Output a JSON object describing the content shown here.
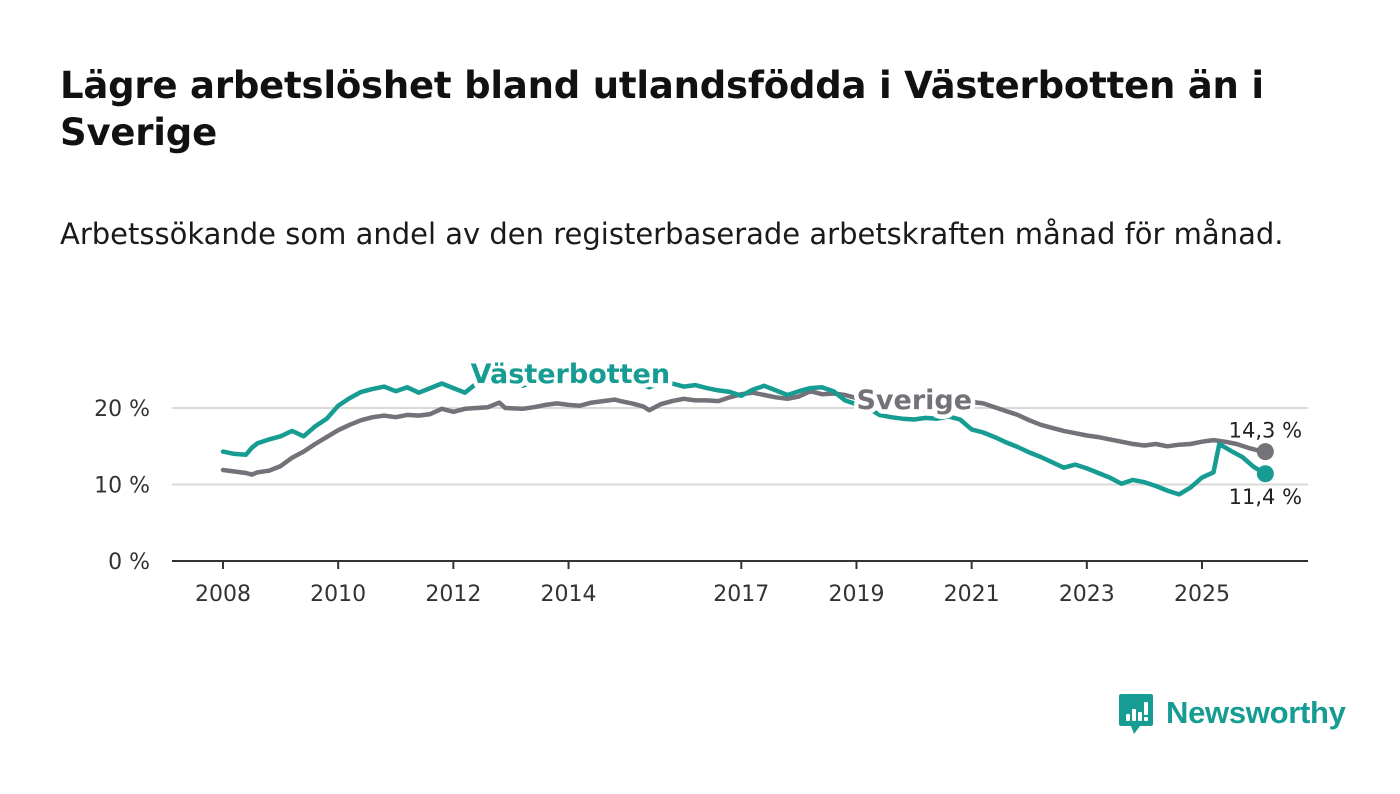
{
  "title": "Lägre arbetslöshet bland utlandsfödda i Västerbotten än i Sverige",
  "subtitle": "Arbetssökande som andel av den registerbaserade arbetskraften månad för månad.",
  "brand": {
    "name": "Newsworthy",
    "color": "#169c92"
  },
  "chart_data": {
    "type": "line",
    "x_unit": "year",
    "xlim": [
      2007.4,
      2026.9
    ],
    "ylim": [
      0,
      25
    ],
    "y_ticks": [
      {
        "value": 0,
        "label": "0 %"
      },
      {
        "value": 10,
        "label": "10 %"
      },
      {
        "value": 20,
        "label": "20 %"
      }
    ],
    "x_ticks": [
      {
        "value": 2008,
        "label": "2008"
      },
      {
        "value": 2010,
        "label": "2010"
      },
      {
        "value": 2012,
        "label": "2012"
      },
      {
        "value": 2014,
        "label": "2014"
      },
      {
        "value": 2017,
        "label": "2017"
      },
      {
        "value": 2019,
        "label": "2019"
      },
      {
        "value": 2021,
        "label": "2021"
      },
      {
        "value": 2023,
        "label": "2023"
      },
      {
        "value": 2025,
        "label": "2025"
      }
    ],
    "series": [
      {
        "name": "Sverige",
        "color": "#757178",
        "end_label": "14,3 %",
        "points": [
          [
            2008.0,
            11.9
          ],
          [
            2008.2,
            11.7
          ],
          [
            2008.4,
            11.5
          ],
          [
            2008.5,
            11.3
          ],
          [
            2008.6,
            11.6
          ],
          [
            2008.8,
            11.8
          ],
          [
            2009.0,
            12.4
          ],
          [
            2009.2,
            13.5
          ],
          [
            2009.4,
            14.3
          ],
          [
            2009.6,
            15.3
          ],
          [
            2009.8,
            16.2
          ],
          [
            2010.0,
            17.1
          ],
          [
            2010.2,
            17.8
          ],
          [
            2010.4,
            18.4
          ],
          [
            2010.6,
            18.8
          ],
          [
            2010.8,
            19.0
          ],
          [
            2011.0,
            18.8
          ],
          [
            2011.2,
            19.1
          ],
          [
            2011.4,
            19.0
          ],
          [
            2011.6,
            19.2
          ],
          [
            2011.8,
            19.9
          ],
          [
            2012.0,
            19.5
          ],
          [
            2012.2,
            19.9
          ],
          [
            2012.4,
            20.0
          ],
          [
            2012.6,
            20.1
          ],
          [
            2012.8,
            20.7
          ],
          [
            2012.9,
            20.0
          ],
          [
            2013.2,
            19.9
          ],
          [
            2013.4,
            20.1
          ],
          [
            2013.6,
            20.4
          ],
          [
            2013.8,
            20.6
          ],
          [
            2014.0,
            20.4
          ],
          [
            2014.2,
            20.3
          ],
          [
            2014.4,
            20.7
          ],
          [
            2014.6,
            20.9
          ],
          [
            2014.8,
            21.1
          ],
          [
            2014.9,
            20.9
          ],
          [
            2015.1,
            20.6
          ],
          [
            2015.3,
            20.2
          ],
          [
            2015.4,
            19.7
          ],
          [
            2015.6,
            20.5
          ],
          [
            2015.8,
            20.9
          ],
          [
            2016.0,
            21.2
          ],
          [
            2016.2,
            21.0
          ],
          [
            2016.4,
            21.0
          ],
          [
            2016.6,
            20.9
          ],
          [
            2016.8,
            21.4
          ],
          [
            2017.0,
            21.8
          ],
          [
            2017.2,
            22.0
          ],
          [
            2017.4,
            21.7
          ],
          [
            2017.6,
            21.4
          ],
          [
            2017.8,
            21.2
          ],
          [
            2018.0,
            21.5
          ],
          [
            2018.2,
            22.2
          ],
          [
            2018.4,
            21.8
          ],
          [
            2018.6,
            21.9
          ],
          [
            2018.8,
            21.7
          ],
          [
            2019.0,
            21.3
          ],
          [
            2019.2,
            21.0
          ],
          [
            2019.4,
            20.8
          ],
          [
            2019.6,
            20.6
          ],
          [
            2019.8,
            20.1
          ],
          [
            2020.0,
            20.0
          ],
          [
            2020.2,
            19.8
          ],
          [
            2020.4,
            19.8
          ],
          [
            2020.6,
            19.9
          ],
          [
            2020.8,
            20.4
          ],
          [
            2021.0,
            20.8
          ],
          [
            2021.2,
            20.6
          ],
          [
            2021.4,
            20.1
          ],
          [
            2021.6,
            19.6
          ],
          [
            2021.8,
            19.1
          ],
          [
            2022.0,
            18.4
          ],
          [
            2022.2,
            17.8
          ],
          [
            2022.4,
            17.4
          ],
          [
            2022.6,
            17.0
          ],
          [
            2022.8,
            16.7
          ],
          [
            2023.0,
            16.4
          ],
          [
            2023.2,
            16.2
          ],
          [
            2023.4,
            15.9
          ],
          [
            2023.6,
            15.6
          ],
          [
            2023.8,
            15.3
          ],
          [
            2024.0,
            15.1
          ],
          [
            2024.2,
            15.3
          ],
          [
            2024.4,
            15.0
          ],
          [
            2024.6,
            15.2
          ],
          [
            2024.8,
            15.3
          ],
          [
            2025.0,
            15.6
          ],
          [
            2025.2,
            15.8
          ],
          [
            2025.4,
            15.6
          ],
          [
            2025.6,
            15.3
          ],
          [
            2025.8,
            14.8
          ],
          [
            2026.0,
            14.4
          ],
          [
            2026.1,
            14.3
          ]
        ]
      },
      {
        "name": "Västerbotten",
        "color": "#169c92",
        "end_label": "11,4 %",
        "points": [
          [
            2008.0,
            14.3
          ],
          [
            2008.2,
            14.0
          ],
          [
            2008.4,
            13.9
          ],
          [
            2008.5,
            14.8
          ],
          [
            2008.6,
            15.4
          ],
          [
            2008.8,
            15.9
          ],
          [
            2009.0,
            16.3
          ],
          [
            2009.2,
            17.0
          ],
          [
            2009.4,
            16.3
          ],
          [
            2009.6,
            17.6
          ],
          [
            2009.8,
            18.6
          ],
          [
            2010.0,
            20.3
          ],
          [
            2010.2,
            21.3
          ],
          [
            2010.4,
            22.1
          ],
          [
            2010.6,
            22.5
          ],
          [
            2010.8,
            22.8
          ],
          [
            2011.0,
            22.2
          ],
          [
            2011.2,
            22.7
          ],
          [
            2011.4,
            22.0
          ],
          [
            2011.6,
            22.6
          ],
          [
            2011.8,
            23.2
          ],
          [
            2012.0,
            22.6
          ],
          [
            2012.2,
            22.0
          ],
          [
            2012.4,
            23.2
          ],
          [
            2012.6,
            23.6
          ],
          [
            2012.8,
            24.3
          ],
          [
            2012.9,
            23.7
          ],
          [
            2013.2,
            22.9
          ],
          [
            2013.4,
            23.4
          ],
          [
            2013.6,
            23.7
          ],
          [
            2013.8,
            23.9
          ],
          [
            2014.0,
            23.8
          ],
          [
            2014.2,
            23.5
          ],
          [
            2014.4,
            23.9
          ],
          [
            2014.6,
            23.6
          ],
          [
            2014.8,
            23.8
          ],
          [
            2014.9,
            23.5
          ],
          [
            2015.1,
            23.3
          ],
          [
            2015.3,
            23.0
          ],
          [
            2015.4,
            22.7
          ],
          [
            2015.6,
            23.2
          ],
          [
            2015.8,
            23.2
          ],
          [
            2016.0,
            22.8
          ],
          [
            2016.2,
            23.0
          ],
          [
            2016.4,
            22.6
          ],
          [
            2016.6,
            22.3
          ],
          [
            2016.8,
            22.1
          ],
          [
            2017.0,
            21.6
          ],
          [
            2017.2,
            22.4
          ],
          [
            2017.4,
            22.9
          ],
          [
            2017.6,
            22.3
          ],
          [
            2017.8,
            21.7
          ],
          [
            2018.0,
            22.2
          ],
          [
            2018.2,
            22.6
          ],
          [
            2018.4,
            22.7
          ],
          [
            2018.6,
            22.2
          ],
          [
            2018.8,
            21.0
          ],
          [
            2019.0,
            20.5
          ],
          [
            2019.2,
            20.0
          ],
          [
            2019.4,
            19.1
          ],
          [
            2019.6,
            18.8
          ],
          [
            2019.8,
            18.6
          ],
          [
            2020.0,
            18.5
          ],
          [
            2020.2,
            18.7
          ],
          [
            2020.4,
            18.6
          ],
          [
            2020.6,
            18.9
          ],
          [
            2020.8,
            18.5
          ],
          [
            2021.0,
            17.2
          ],
          [
            2021.2,
            16.8
          ],
          [
            2021.4,
            16.2
          ],
          [
            2021.6,
            15.5
          ],
          [
            2021.8,
            14.9
          ],
          [
            2022.0,
            14.2
          ],
          [
            2022.2,
            13.6
          ],
          [
            2022.4,
            12.9
          ],
          [
            2022.6,
            12.2
          ],
          [
            2022.8,
            12.6
          ],
          [
            2023.0,
            12.1
          ],
          [
            2023.2,
            11.5
          ],
          [
            2023.4,
            10.9
          ],
          [
            2023.6,
            10.1
          ],
          [
            2023.8,
            10.6
          ],
          [
            2024.0,
            10.3
          ],
          [
            2024.2,
            9.8
          ],
          [
            2024.4,
            9.2
          ],
          [
            2024.6,
            8.7
          ],
          [
            2024.8,
            9.6
          ],
          [
            2025.0,
            10.9
          ],
          [
            2025.2,
            11.6
          ],
          [
            2025.3,
            15.3
          ],
          [
            2025.5,
            14.4
          ],
          [
            2025.7,
            13.6
          ],
          [
            2025.9,
            12.3
          ],
          [
            2026.1,
            11.4
          ]
        ]
      }
    ]
  }
}
